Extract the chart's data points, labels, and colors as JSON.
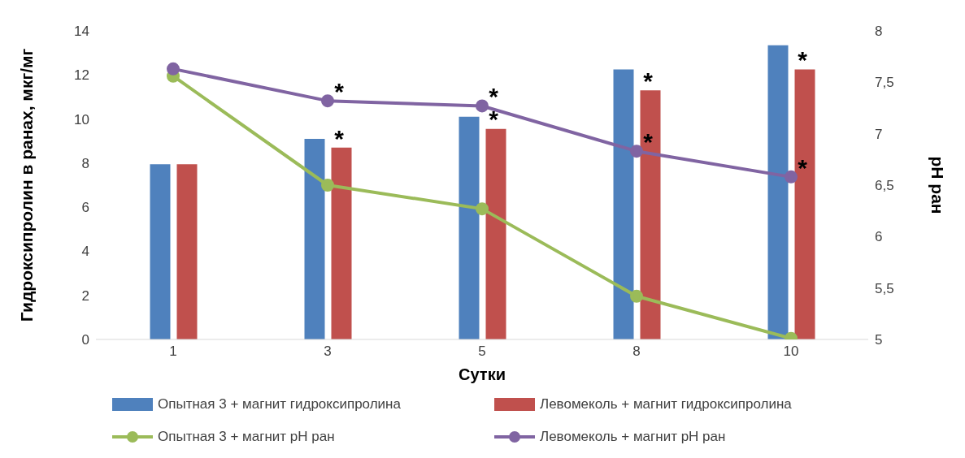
{
  "chart_data": {
    "type": "bar",
    "xlabel": "Сутки",
    "ylabel": "Гидроксипролин в ранах, мкг/мг",
    "y2label": "pH ран",
    "categories": [
      "1",
      "3",
      "5",
      "8",
      "10"
    ],
    "series": [
      {
        "name": "Опытная 3 + магнит гидроксипролина",
        "color": "#4f81bd",
        "values": [
          7.95,
          9.1,
          10.1,
          12.25,
          13.35
        ]
      },
      {
        "name": "Левомеколь + магнит гидроксипролина",
        "color": "#c0504d",
        "values": [
          7.95,
          8.7,
          9.55,
          11.3,
          12.25
        ]
      },
      {
        "name": "Опытная 3 + магнит pH ран",
        "type": "line",
        "axis": "y2",
        "color": "#9bbb59",
        "values": [
          7.56,
          6.5,
          6.27,
          5.42,
          5.01
        ]
      },
      {
        "name": "Левомеколь + магнит pH ран",
        "type": "line",
        "axis": "y2",
        "color": "#8064a2",
        "values": [
          7.63,
          7.32,
          7.27,
          6.83,
          6.58
        ]
      }
    ],
    "ylim": [
      0,
      14
    ],
    "yticks": [
      0,
      2,
      4,
      6,
      8,
      10,
      12,
      14
    ],
    "y2lim": [
      5,
      8
    ],
    "y2ticks": [
      5,
      {
        "value": 5.5,
        "label": "5,5"
      },
      6,
      {
        "value": 6.5,
        "label": "6,5"
      },
      7,
      {
        "value": 7.5,
        "label": "7,5"
      },
      8
    ],
    "marker": "circle",
    "grid": false,
    "legend": "bottom",
    "annotations": [
      {
        "text": "*",
        "x": "3",
        "y": 10.83
      },
      {
        "text": "*",
        "x": "3",
        "y": 8.7
      },
      {
        "text": "*",
        "x": "5",
        "y": 10.59
      },
      {
        "text": "*",
        "x": "5",
        "y": 9.55
      },
      {
        "text": "*",
        "x": "8",
        "y": 8.54
      },
      {
        "text": "*",
        "x": "8",
        "y": 11.3
      },
      {
        "text": "*",
        "x": "10",
        "y": 12.25
      },
      {
        "text": "*",
        "x": "10",
        "y": 7.37
      }
    ]
  }
}
